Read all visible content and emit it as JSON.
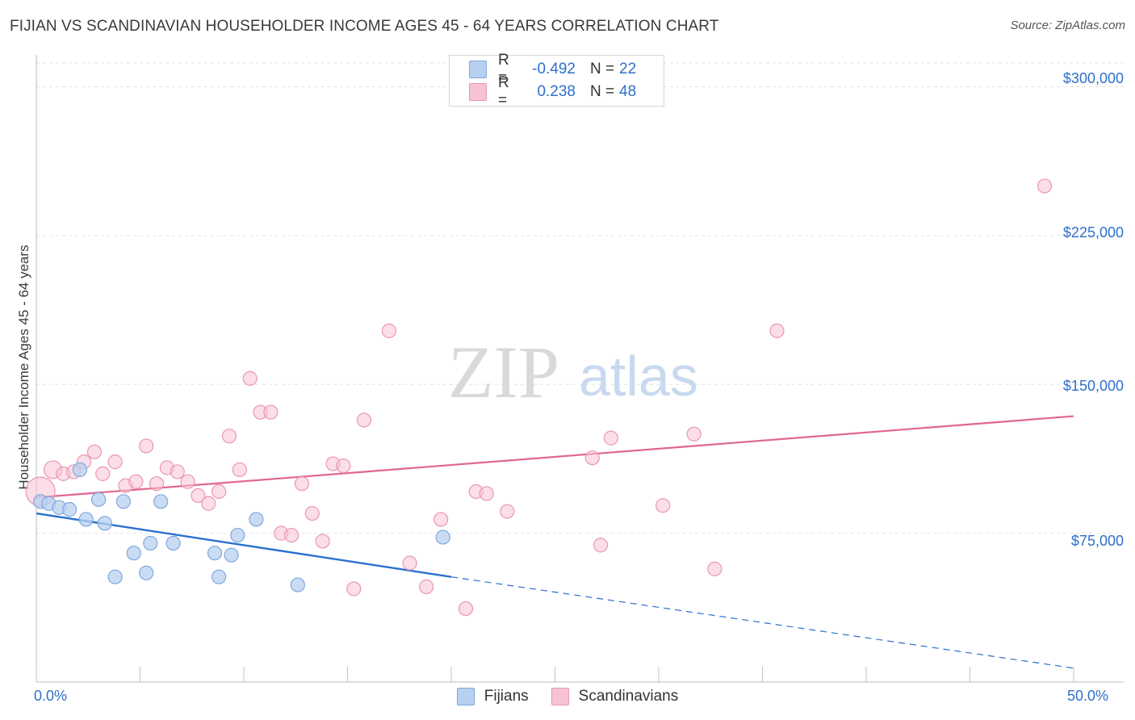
{
  "title": "FIJIAN VS SCANDINAVIAN HOUSEHOLDER INCOME AGES 45 - 64 YEARS CORRELATION CHART",
  "source": "Source: ZipAtlas.com",
  "watermark": {
    "zip": "ZIP",
    "atlas": "atlas"
  },
  "legend_top": {
    "fijian": {
      "r_label": "R =",
      "r_value": "-0.492",
      "n_label": "N =",
      "n_value": "22"
    },
    "scandinavian": {
      "r_label": "R =",
      "r_value": "0.238",
      "n_label": "N =",
      "n_value": "48"
    }
  },
  "legend_bottom": {
    "fijian": "Fijians",
    "scandinavian": "Scandinavians"
  },
  "colors": {
    "fijian_fill": "#b8d0f0",
    "fijian_stroke": "#7fa7dc",
    "fijian_line": "#2a6fcf",
    "scand_fill": "#f7c3d3",
    "scand_stroke": "#e996b2",
    "scand_line": "#e0668f",
    "tick_text": "#2f6fc9"
  },
  "chart_data": {
    "type": "scatter",
    "title": "FIJIAN VS SCANDINAVIAN HOUSEHOLDER INCOME AGES 45 - 64 YEARS CORRELATION CHART",
    "xlabel": "",
    "ylabel": "Householder Income Ages 45 - 64 years",
    "xlim": [
      0,
      50
    ],
    "ylim": [
      0,
      312000
    ],
    "x_tick_labels": [
      "0.0%",
      "50.0%"
    ],
    "y_ticks": [
      75000,
      150000,
      225000,
      300000
    ],
    "y_tick_labels": [
      "$75,000",
      "$150,000",
      "$225,000",
      "$300,000"
    ],
    "grid": true,
    "series": [
      {
        "name": "Fijians",
        "points": [
          [
            0.2,
            91000
          ],
          [
            0.6,
            90000
          ],
          [
            1.1,
            88000
          ],
          [
            1.6,
            87000
          ],
          [
            2.1,
            107000
          ],
          [
            2.4,
            82000
          ],
          [
            3.0,
            92000
          ],
          [
            3.3,
            80000
          ],
          [
            3.8,
            53000
          ],
          [
            4.2,
            91000
          ],
          [
            4.7,
            65000
          ],
          [
            5.3,
            55000
          ],
          [
            5.5,
            70000
          ],
          [
            6.0,
            91000
          ],
          [
            6.6,
            70000
          ],
          [
            8.6,
            65000
          ],
          [
            8.8,
            53000
          ],
          [
            9.4,
            64000
          ],
          [
            9.7,
            74000
          ],
          [
            10.6,
            82000
          ],
          [
            12.6,
            49000
          ],
          [
            19.6,
            73000
          ]
        ],
        "trend": {
          "x_solid": [
            0,
            20
          ],
          "y_solid": [
            85000,
            53000
          ],
          "x_dashed": [
            20,
            50
          ],
          "y_dashed": [
            53000,
            7000
          ]
        }
      },
      {
        "name": "Scandinavians",
        "points": [
          [
            0.2,
            96000
          ],
          [
            0.8,
            107000
          ],
          [
            1.3,
            105000
          ],
          [
            1.8,
            106000
          ],
          [
            2.3,
            111000
          ],
          [
            2.8,
            116000
          ],
          [
            3.2,
            105000
          ],
          [
            3.8,
            111000
          ],
          [
            4.3,
            99000
          ],
          [
            4.8,
            101000
          ],
          [
            5.3,
            119000
          ],
          [
            5.8,
            100000
          ],
          [
            6.3,
            108000
          ],
          [
            6.8,
            106000
          ],
          [
            7.3,
            101000
          ],
          [
            7.8,
            94000
          ],
          [
            8.3,
            90000
          ],
          [
            8.8,
            96000
          ],
          [
            9.3,
            124000
          ],
          [
            9.8,
            107000
          ],
          [
            10.3,
            153000
          ],
          [
            10.8,
            136000
          ],
          [
            11.3,
            136000
          ],
          [
            11.8,
            75000
          ],
          [
            12.3,
            74000
          ],
          [
            12.8,
            100000
          ],
          [
            13.3,
            85000
          ],
          [
            13.8,
            71000
          ],
          [
            14.3,
            110000
          ],
          [
            14.8,
            109000
          ],
          [
            15.3,
            47000
          ],
          [
            15.8,
            132000
          ],
          [
            17.0,
            177000
          ],
          [
            18.0,
            60000
          ],
          [
            18.8,
            48000
          ],
          [
            19.5,
            82000
          ],
          [
            20.7,
            37000
          ],
          [
            21.2,
            96000
          ],
          [
            21.7,
            95000
          ],
          [
            22.7,
            86000
          ],
          [
            26.8,
            113000
          ],
          [
            27.2,
            69000
          ],
          [
            27.7,
            123000
          ],
          [
            30.2,
            89000
          ],
          [
            31.7,
            125000
          ],
          [
            32.7,
            57000
          ],
          [
            35.7,
            177000
          ],
          [
            48.6,
            250000
          ]
        ],
        "trend": {
          "x": [
            0,
            50
          ],
          "y": [
            93000,
            134000
          ]
        }
      }
    ]
  }
}
